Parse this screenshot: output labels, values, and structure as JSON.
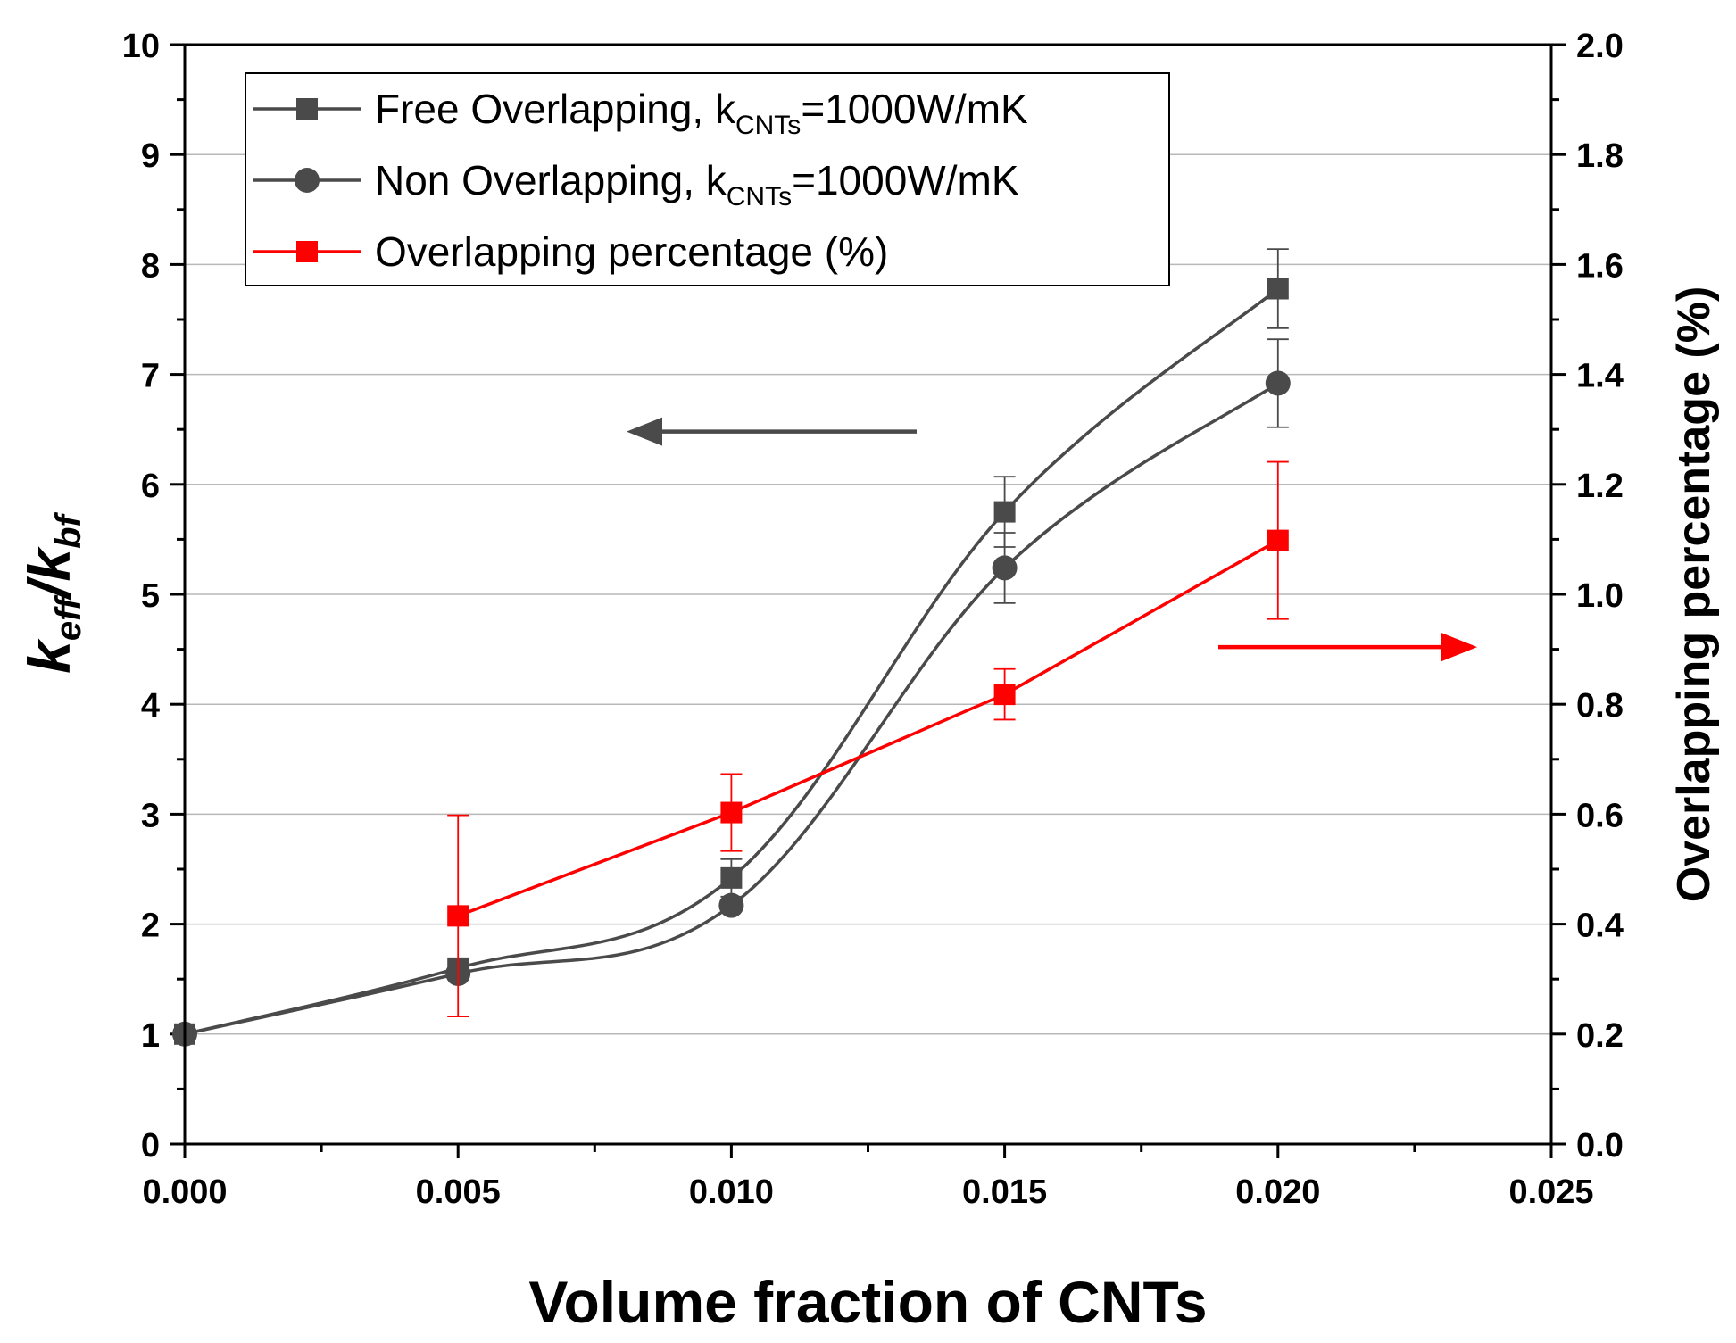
{
  "chart_data": {
    "type": "line",
    "x": [
      0.0,
      0.005,
      0.01,
      0.015,
      0.02
    ],
    "xlabel": "Volume fraction of CNTs",
    "ylabel_left": {
      "base": "k",
      "sub1": "eff",
      "slash": "/",
      "base2": "k",
      "sub2": "bf"
    },
    "ylabel_right": "Overlapping percentage (%)",
    "xlim": [
      0.0,
      0.025
    ],
    "ylim_left": [
      0,
      10
    ],
    "ylim_right": [
      0.0,
      2.0
    ],
    "x_ticks": [
      "0.000",
      "0.005",
      "0.010",
      "0.015",
      "0.020",
      "0.025"
    ],
    "y_ticks_left": [
      "0",
      "1",
      "2",
      "3",
      "4",
      "5",
      "6",
      "7",
      "8",
      "9",
      "10"
    ],
    "y_ticks_right": [
      "0.0",
      "0.2",
      "0.4",
      "0.6",
      "0.8",
      "1.0",
      "1.2",
      "1.4",
      "1.6",
      "1.8",
      "2.0"
    ],
    "grid": true,
    "legend_position": "top-left",
    "series": [
      {
        "name": "Free Overlapping",
        "legend_prefix": "Free Overlapping, k",
        "legend_sub": "CNTs",
        "legend_suffix": "=1000W/mK",
        "axis": "left",
        "marker": "square",
        "color": "#4a4a4a",
        "smooth": true,
        "x": [
          0.0,
          0.005,
          0.01,
          0.015,
          0.02
        ],
        "values": [
          1.0,
          1.6,
          2.42,
          5.75,
          7.78
        ],
        "errors": [
          0,
          0,
          0.17,
          0.32,
          0.36
        ]
      },
      {
        "name": "Non Overlapping",
        "legend_prefix": "Non Overlapping, k",
        "legend_sub": "CNTs",
        "legend_suffix": "=1000W/mK",
        "axis": "left",
        "marker": "circle",
        "color": "#4a4a4a",
        "smooth": true,
        "x": [
          0.0,
          0.005,
          0.01,
          0.015,
          0.02
        ],
        "values": [
          1.0,
          1.55,
          2.17,
          5.24,
          6.92
        ],
        "errors": [
          0,
          0,
          0,
          0.32,
          0.4
        ]
      },
      {
        "name": "Overlapping percentage (%)",
        "legend_prefix": "Overlapping percentage (%)",
        "legend_sub": "",
        "legend_suffix": "",
        "axis": "right",
        "marker": "square",
        "color": "#ff0000",
        "smooth": false,
        "x": [
          0.005,
          0.01,
          0.015,
          0.02
        ],
        "values": [
          0.415,
          0.603,
          0.818,
          1.098
        ],
        "errors": [
          0.183,
          0.07,
          0.046,
          0.143
        ]
      }
    ],
    "annotations": [
      {
        "type": "arrow",
        "direction": "left",
        "color": "#4a4a4a",
        "meaning": "left axis"
      },
      {
        "type": "arrow",
        "direction": "right",
        "color": "#ff0000",
        "meaning": "right axis"
      }
    ]
  }
}
